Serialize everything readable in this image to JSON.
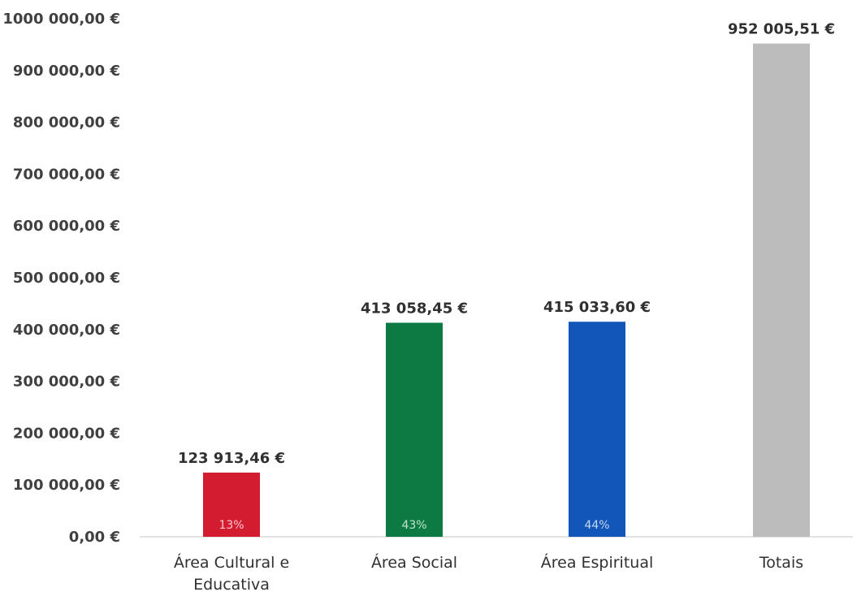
{
  "chart_data": {
    "type": "bar",
    "categories": [
      [
        "Área Cultural e",
        "Educativa"
      ],
      [
        "Área Social"
      ],
      [
        "Área Espiritual"
      ],
      [
        "Totais"
      ]
    ],
    "values": [
      123913.46,
      413058.45,
      415033.6,
      952005.51
    ],
    "value_labels": [
      "123 913,46 €",
      "413 058,45 €",
      "415 033,60 €",
      "952 005,51 €"
    ],
    "percent_labels": [
      "13%",
      "43%",
      "44%",
      ""
    ],
    "colors": [
      "#d41c30",
      "#0e7a43",
      "#1156b8",
      "#bcbcbc"
    ],
    "percent_label_colors": [
      "#f7c9cf",
      "#bfe3cc",
      "#c4d7f3",
      ""
    ],
    "ylim": [
      0,
      1000000
    ],
    "yticks": [
      0,
      100000,
      200000,
      300000,
      400000,
      500000,
      600000,
      700000,
      800000,
      900000,
      1000000
    ],
    "ytick_labels": [
      "0,00 €",
      "100 000,00 €",
      "200 000,00 €",
      "300 000,00 €",
      "400 000,00 €",
      "500 000,00 €",
      "600 000,00 €",
      "700 000,00 €",
      "800 000,00 €",
      "900 000,00 €",
      "1000 000,00 €"
    ],
    "grid": false,
    "legend": "none"
  }
}
